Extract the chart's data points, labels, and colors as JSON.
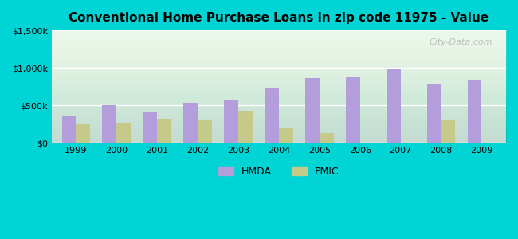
{
  "title": "Conventional Home Purchase Loans in zip code 11975 - Value",
  "years": [
    1999,
    2000,
    2001,
    2002,
    2003,
    2004,
    2005,
    2006,
    2007,
    2008,
    2009
  ],
  "hmda": [
    350000,
    500000,
    420000,
    540000,
    570000,
    730000,
    860000,
    880000,
    980000,
    780000,
    840000
  ],
  "pmic": [
    250000,
    270000,
    320000,
    300000,
    430000,
    200000,
    130000,
    0,
    0,
    300000,
    0
  ],
  "hmda_color": "#b39ddb",
  "pmic_color": "#c5c98a",
  "bg_outer": "#00d4d4",
  "bg_plot_top": "#e8f5f0",
  "bg_plot_bottom": "#f0f8e8",
  "ylim": [
    0,
    1500000
  ],
  "yticks": [
    0,
    500000,
    1000000,
    1500000
  ],
  "ytick_labels": [
    "$0",
    "$500k",
    "$1,000k",
    "$1,500k"
  ],
  "watermark": "City-Data.com",
  "legend_labels": [
    "HMDA",
    "PMIC"
  ]
}
